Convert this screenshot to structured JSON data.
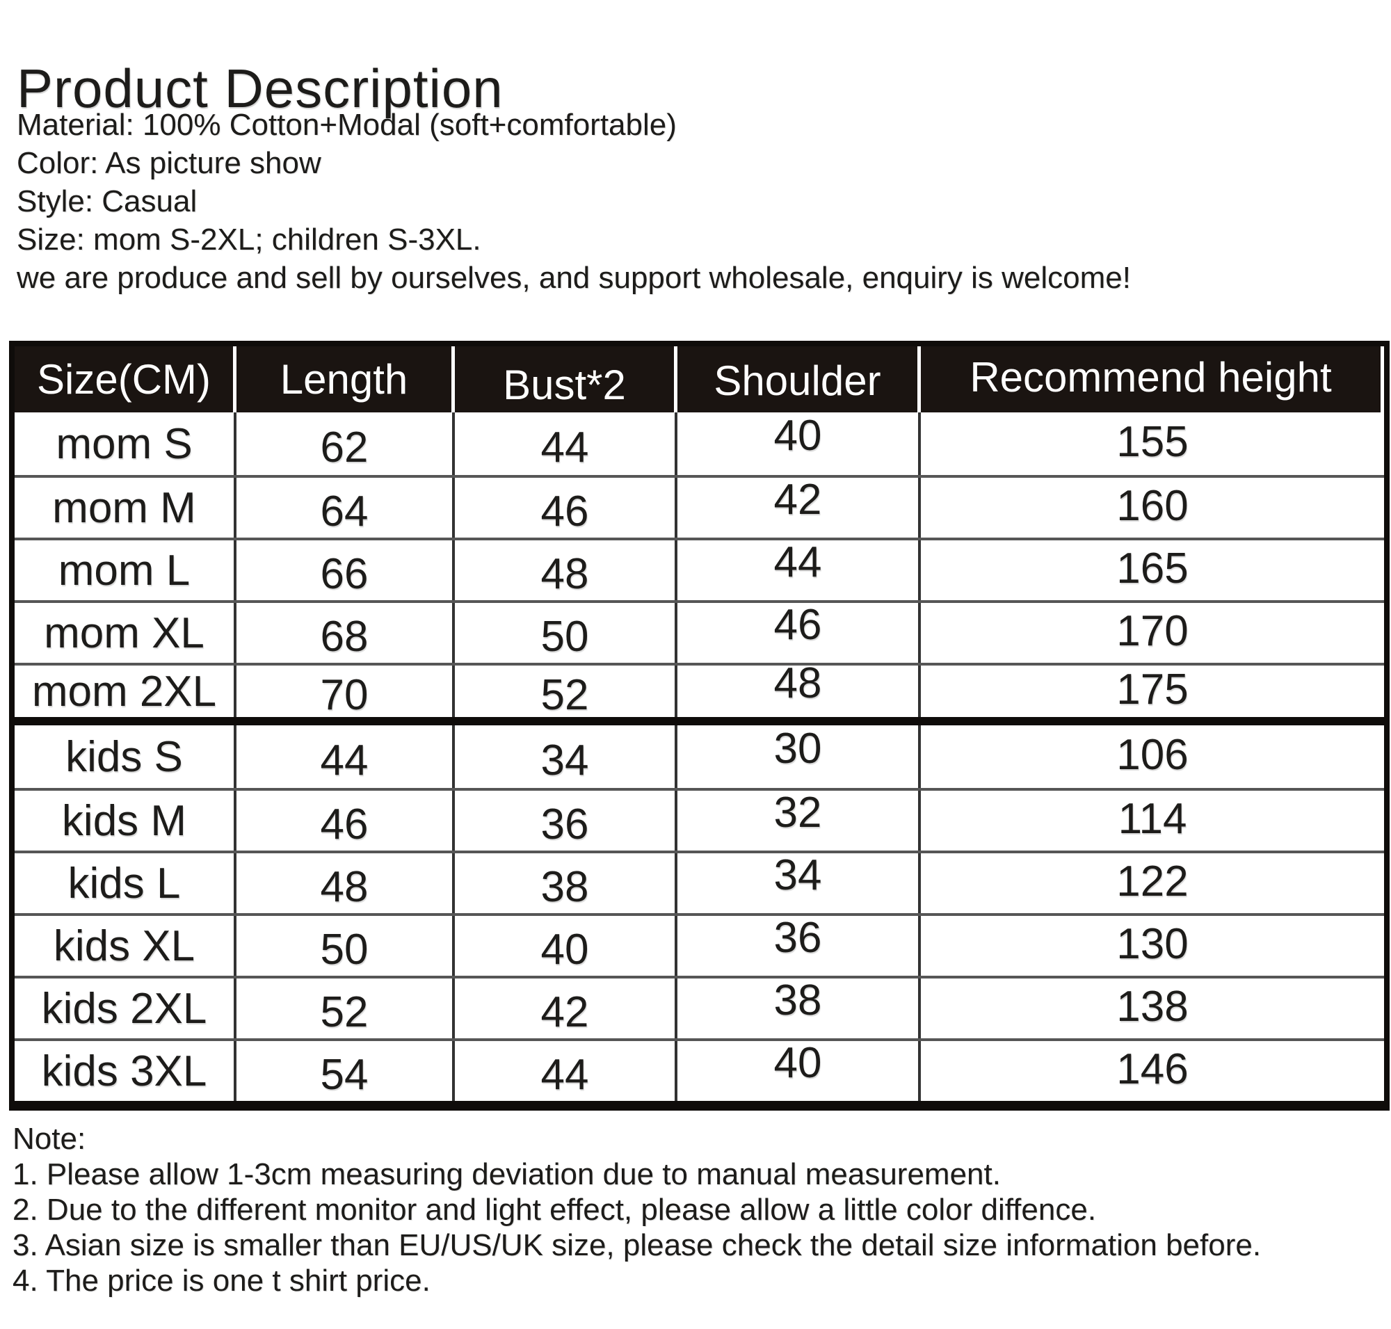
{
  "page": {
    "title": "Product Description"
  },
  "description": {
    "lines": [
      "Material: 100% Cotton+Modal (soft+comfortable)",
      "Color: As picture show",
      "Style: Casual",
      "Size: mom S-2XL; children S-3XL.",
      "we are produce and sell by ourselves, and support wholesale, enquiry is welcome!"
    ]
  },
  "size_table": {
    "columns": [
      "Size(CM)",
      "Length",
      "Bust*2",
      "Shoulder",
      "Recommend height"
    ],
    "groups": [
      {
        "name": "mom",
        "rows": [
          [
            "mom S",
            "62",
            "44",
            "40",
            "155"
          ],
          [
            "mom M",
            "64",
            "46",
            "42",
            "160"
          ],
          [
            "mom L",
            "66",
            "48",
            "44",
            "165"
          ],
          [
            "mom XL",
            "68",
            "50",
            "46",
            "170"
          ],
          [
            "mom 2XL",
            "70",
            "52",
            "48",
            "175"
          ]
        ]
      },
      {
        "name": "kids",
        "rows": [
          [
            "kids S",
            "44",
            "34",
            "30",
            "106"
          ],
          [
            "kids M",
            "46",
            "36",
            "32",
            "114"
          ],
          [
            "kids L",
            "48",
            "38",
            "34",
            "122"
          ],
          [
            "kids XL",
            "50",
            "40",
            "36",
            "130"
          ],
          [
            "kids 2XL",
            "52",
            "42",
            "38",
            "138"
          ],
          [
            "kids 3XL",
            "54",
            "44",
            "40",
            "146"
          ]
        ]
      }
    ]
  },
  "notes": {
    "label": "Note:",
    "items": [
      "1. Please allow 1-3cm measuring deviation due to manual measurement.",
      "2. Due to the different monitor and light effect, please allow a little color diffence.",
      "3. Asian size is smaller than EU/US/UK size, please check the detail size information before.",
      "4. The price is one t shirt price."
    ]
  },
  "colors": {
    "text": "#1d1c1a",
    "header_bg": "#1a1411",
    "grid_line_horizontal": "#565656",
    "grid_line_vertical": "#323232",
    "outer_border": "#0f0c0a",
    "background": "#ffffff"
  }
}
